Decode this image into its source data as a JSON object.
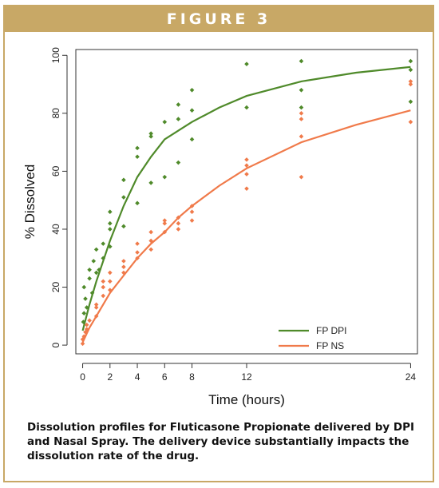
{
  "header": {
    "figure_label": "FIGURE 3"
  },
  "caption": "Dissolution profiles for Fluticasone Propionate delivered by DPI and Nasal Spray. The delivery device substantially impacts the dissolution rate of the drug.",
  "colors": {
    "frame": "#c8a866",
    "dpi": "#4f8a2a",
    "ns": "#f07a4a"
  },
  "chart_data": {
    "type": "scatter",
    "title": "",
    "xlabel": "Time (hours)",
    "ylabel": "% Dissolved",
    "xlim": [
      -0.5,
      24.5
    ],
    "ylim": [
      -3,
      102
    ],
    "xticks": [
      0,
      2,
      4,
      6,
      8,
      12,
      24
    ],
    "yticks": [
      0,
      20,
      40,
      60,
      80,
      100
    ],
    "grid": false,
    "legend_position": "bottom-right",
    "series": [
      {
        "name": "FP DPI",
        "color": "#4f8a2a",
        "points": [
          [
            0.05,
            8
          ],
          [
            0.1,
            11
          ],
          [
            0.2,
            16
          ],
          [
            0.1,
            20
          ],
          [
            0.3,
            13
          ],
          [
            0.5,
            23
          ],
          [
            0.5,
            26
          ],
          [
            0.7,
            18
          ],
          [
            0.8,
            29
          ],
          [
            1,
            25
          ],
          [
            1,
            33
          ],
          [
            1.2,
            26
          ],
          [
            1.5,
            35
          ],
          [
            1.5,
            30
          ],
          [
            2,
            40
          ],
          [
            2,
            42
          ],
          [
            2,
            46
          ],
          [
            2,
            34
          ],
          [
            3,
            57
          ],
          [
            3,
            51
          ],
          [
            3,
            41
          ],
          [
            4,
            68
          ],
          [
            4,
            65
          ],
          [
            4,
            49
          ],
          [
            5,
            73
          ],
          [
            5,
            72
          ],
          [
            5,
            56
          ],
          [
            6,
            77
          ],
          [
            6,
            58
          ],
          [
            7,
            83
          ],
          [
            7,
            78
          ],
          [
            7,
            63
          ],
          [
            8,
            88
          ],
          [
            8,
            81
          ],
          [
            8,
            71
          ],
          [
            12,
            97
          ],
          [
            12,
            82
          ],
          [
            16,
            98
          ],
          [
            16,
            88
          ],
          [
            16,
            82
          ],
          [
            24,
            98
          ],
          [
            24,
            95
          ],
          [
            24,
            84
          ]
        ],
        "fit": [
          [
            0,
            5
          ],
          [
            0.5,
            14
          ],
          [
            1,
            22
          ],
          [
            2,
            36
          ],
          [
            3,
            48
          ],
          [
            4,
            58
          ],
          [
            5,
            65
          ],
          [
            6,
            71
          ],
          [
            7,
            74
          ],
          [
            8,
            77
          ],
          [
            10,
            82
          ],
          [
            12,
            86
          ],
          [
            16,
            91
          ],
          [
            20,
            94
          ],
          [
            24,
            96
          ]
        ]
      },
      {
        "name": "FP NS",
        "color": "#f07a4a",
        "points": [
          [
            0,
            0.5
          ],
          [
            0,
            2
          ],
          [
            0.1,
            3
          ],
          [
            0.2,
            4.5
          ],
          [
            0.3,
            5.5
          ],
          [
            0.3,
            7
          ],
          [
            0.5,
            8.5
          ],
          [
            1,
            10
          ],
          [
            1,
            13
          ],
          [
            1,
            14
          ],
          [
            1.5,
            17
          ],
          [
            1.5,
            20
          ],
          [
            1.5,
            22
          ],
          [
            2,
            19
          ],
          [
            2,
            22
          ],
          [
            2,
            25
          ],
          [
            3,
            25
          ],
          [
            3,
            27
          ],
          [
            3,
            29
          ],
          [
            4,
            30
          ],
          [
            4,
            32
          ],
          [
            4,
            35
          ],
          [
            5,
            33
          ],
          [
            5,
            36
          ],
          [
            5,
            39
          ],
          [
            6,
            39
          ],
          [
            6,
            42
          ],
          [
            6,
            43
          ],
          [
            7,
            40
          ],
          [
            7,
            42
          ],
          [
            7,
            44
          ],
          [
            8,
            43
          ],
          [
            8,
            46
          ],
          [
            8,
            48
          ],
          [
            12,
            54
          ],
          [
            12,
            59
          ],
          [
            12,
            62
          ],
          [
            12,
            64
          ],
          [
            16,
            58
          ],
          [
            16,
            72
          ],
          [
            16,
            78
          ],
          [
            16,
            80
          ],
          [
            24,
            77
          ],
          [
            24,
            90
          ],
          [
            24,
            91
          ]
        ],
        "fit": [
          [
            0,
            1
          ],
          [
            0.5,
            6
          ],
          [
            1,
            10
          ],
          [
            2,
            18
          ],
          [
            3,
            24
          ],
          [
            4,
            30
          ],
          [
            5,
            35
          ],
          [
            6,
            39
          ],
          [
            7,
            44
          ],
          [
            8,
            48
          ],
          [
            10,
            55
          ],
          [
            12,
            61
          ],
          [
            16,
            70
          ],
          [
            20,
            76
          ],
          [
            24,
            81
          ]
        ]
      }
    ]
  }
}
